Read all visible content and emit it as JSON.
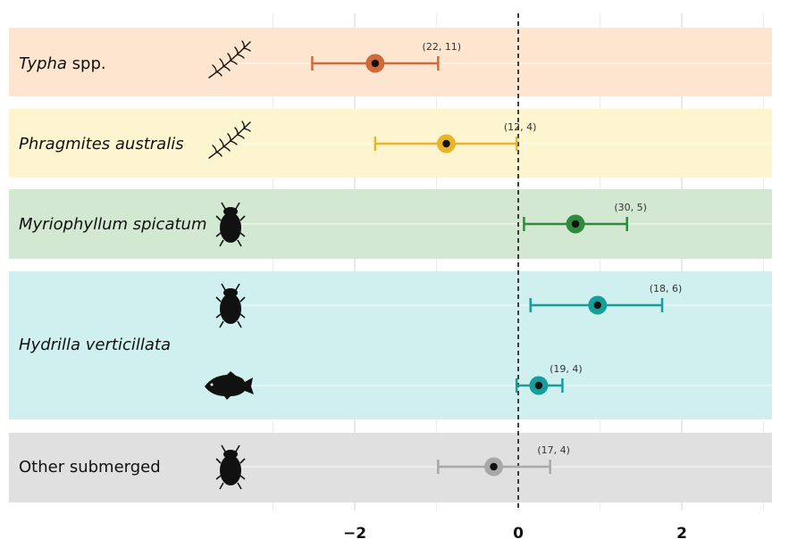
{
  "chart_data": {
    "type": "forest",
    "title": "",
    "xlabel": "",
    "ylabel": "",
    "xlim": [
      -3.2,
      3.1
    ],
    "xticks": [
      -2,
      0,
      2
    ],
    "xtick_labels": [
      "−2",
      "0",
      "2"
    ],
    "reference_line": 0,
    "grid": true,
    "groups": [
      {
        "label": "Typha spp.",
        "italic_part": "Typha",
        "plain_part": " spp.",
        "color": "#fde5cf",
        "rows": 1
      },
      {
        "label": "Phragmites australis",
        "italic_part": "Phragmites australis",
        "plain_part": "",
        "color": "#fcf5cf",
        "rows": 1
      },
      {
        "label": "Myriophyllum spicatum",
        "italic_part": "Myriophyllum spicatum",
        "plain_part": "",
        "color": "#d3e8d0",
        "rows": 1
      },
      {
        "label": "Hydrilla verticillata",
        "italic_part": "Hydrilla verticillata",
        "plain_part": "",
        "color": "#cff0ee",
        "rows": 2
      },
      {
        "label": "Other submerged",
        "italic_part": "",
        "plain_part": "Other submerged",
        "color": "#e0e0e0",
        "rows": 1
      }
    ],
    "estimates": [
      {
        "group": 0,
        "row": 0,
        "icon": "plant-icon",
        "mean": -1.75,
        "lower": -2.52,
        "upper": -0.98,
        "n_label": "(22, 11)",
        "color": "#d2693a"
      },
      {
        "group": 1,
        "row": 0,
        "icon": "plant-icon",
        "mean": -0.88,
        "lower": -1.75,
        "upper": -0.02,
        "n_label": "(12, 4)",
        "color": "#e8b429"
      },
      {
        "group": 2,
        "row": 0,
        "icon": "insect-icon",
        "mean": 0.7,
        "lower": 0.07,
        "upper": 1.33,
        "n_label": "(30, 5)",
        "color": "#2e8b3e"
      },
      {
        "group": 3,
        "row": 0,
        "icon": "insect-icon",
        "mean": 0.97,
        "lower": 0.15,
        "upper": 1.76,
        "n_label": "(18, 6)",
        "color": "#159e9a"
      },
      {
        "group": 3,
        "row": 1,
        "icon": "fish-icon",
        "mean": 0.25,
        "lower": -0.02,
        "upper": 0.54,
        "n_label": "(19, 4)",
        "color": "#159e9a"
      },
      {
        "group": 4,
        "row": 0,
        "icon": "insect-icon",
        "mean": -0.3,
        "lower": -0.98,
        "upper": 0.39,
        "n_label": "(17, 4)",
        "color": "#a8a8a8"
      }
    ]
  }
}
